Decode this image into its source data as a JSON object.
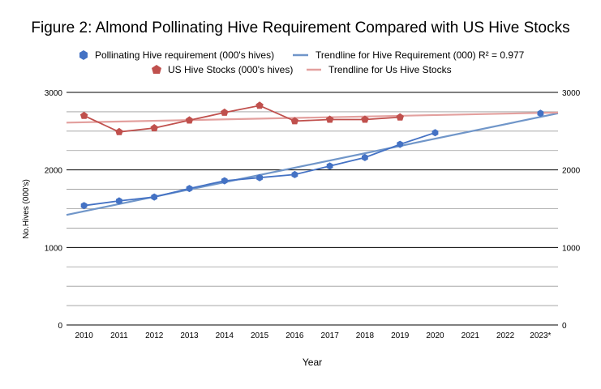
{
  "chart_data": {
    "type": "line",
    "title": "Figure 2: Almond Pollinating Hive Requirement Compared with US Hive Stocks",
    "xlabel": "Year",
    "ylabel": "No.Hives (000's)",
    "categories": [
      "2010",
      "2011",
      "2012",
      "2013",
      "2014",
      "2015",
      "2016",
      "2017",
      "2018",
      "2019",
      "2020",
      "2021",
      "2022",
      "2023*"
    ],
    "ylim": [
      0,
      3000
    ],
    "yticks": [
      0,
      1000,
      2000,
      3000
    ],
    "yticks_right": [
      0,
      1000,
      2000,
      3000
    ],
    "grid": true,
    "legend_position": "top",
    "series": [
      {
        "name": "Pollinating Hive requirement (000's hives)",
        "color": "#4472c4",
        "marker": "hexagon",
        "values": [
          1540,
          1600,
          1650,
          1760,
          1860,
          1900,
          1940,
          2050,
          2160,
          2330,
          2480,
          null,
          null,
          2730
        ]
      },
      {
        "name": "US Hive Stocks (000's hives)",
        "color": "#c0504d",
        "marker": "pentagon",
        "values": [
          2700,
          2490,
          2540,
          2640,
          2740,
          2830,
          2630,
          2650,
          2650,
          2680,
          null,
          null,
          null,
          null
        ]
      }
    ],
    "trendlines": [
      {
        "name": "Trendline for Hive Requirement (000) R² = 0.977",
        "color": "#7096c9",
        "start": 1420,
        "end": 2730
      },
      {
        "name": "Trendline for Us Hive Stocks",
        "color": "#e3a09e",
        "start": 2610,
        "end": 2740
      }
    ]
  }
}
